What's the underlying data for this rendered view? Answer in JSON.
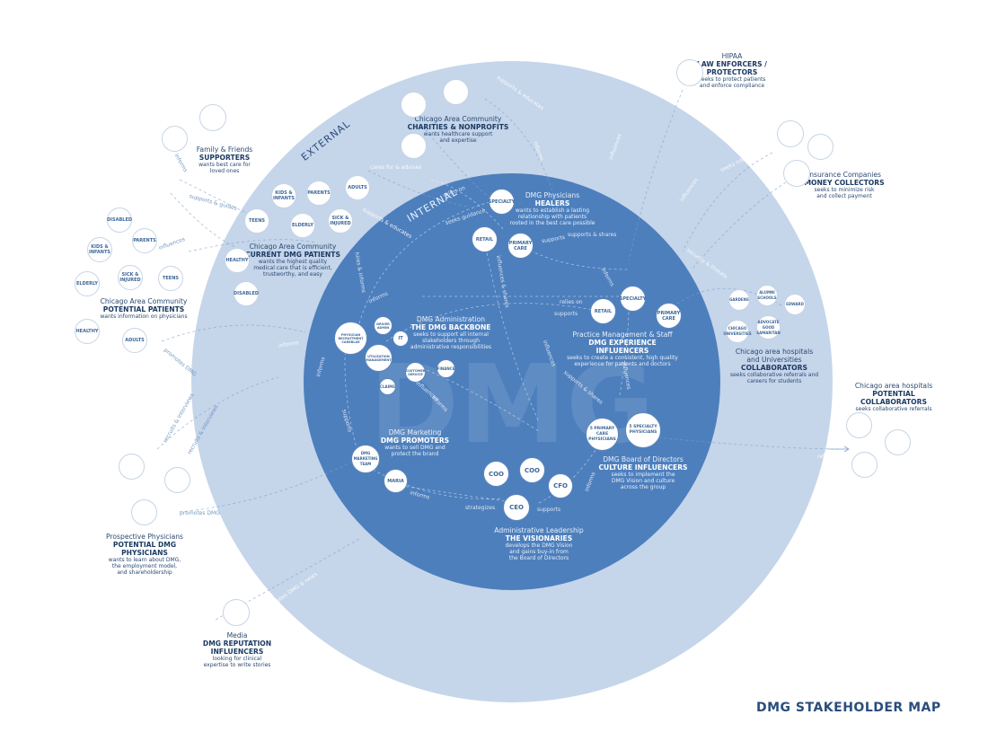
{
  "title": "DMG STAKEHOLDER MAP",
  "colors": {
    "outer_ring": "#c5d5ea",
    "inner_circle": "#4d7fbd",
    "text_dark": "#1f3f66",
    "node_border": "#c7d4e5"
  },
  "rings": {
    "external": "EXTERNAL",
    "internal": "INTERNAL",
    "watermark": "DMG"
  },
  "groups": {
    "hipaa": {
      "cat": "HIPAA",
      "role1": "LAW ENFORCERS /",
      "role2": "PROTECTORS",
      "desc1": "seeks to protect patients",
      "desc2": "and enforce compliance"
    },
    "charities": {
      "cat": "Chicago Area Community",
      "role": "CHARITIES & NONPROFITS",
      "desc1": "wants healthcare support",
      "desc2": "and expertise"
    },
    "family": {
      "cat": "Family & Friends",
      "role": "SUPPORTERS",
      "desc1": "wants best care for",
      "desc2": "loved ones"
    },
    "insurance": {
      "cat": "Insurance Companies",
      "role": "MONEY COLLECTORS",
      "desc1": "seeks to minimize risk",
      "desc2": "and collect payment"
    },
    "current": {
      "cat": "Chicago Area Community",
      "role": "CURRENT DMG PATIENTS",
      "desc1": "wants the highest quality",
      "desc2": "medical care that is efficient,",
      "desc3": "trustworthy, and easy"
    },
    "potential": {
      "cat": "Chicago Area Community",
      "role": "POTENTIAL PATIENTS",
      "desc1": "wants information on physicians"
    },
    "healers": {
      "cat": "DMG Physicians",
      "role": "HEALERS",
      "desc1": "wants to establish a lasting",
      "desc2": "relationship with patients",
      "desc3": "rooted in the best care possible"
    },
    "backbone": {
      "cat": "DMG Administration",
      "role": "THE DMG BACKBONE",
      "desc1": "seeks to support all internal",
      "desc2": "stakeholders through",
      "desc3": "administrative responsibilities"
    },
    "experience": {
      "cat": "Practice Management & Staff",
      "role": "DMG EXPERIENCE INFLUENCERS",
      "desc1": "seeks to create a consistent, high quality",
      "desc2": "experience for patients and doctors"
    },
    "collaborators": {
      "cat1": "Chicago area hospitals",
      "cat2": "and Universities",
      "role": "COLLABORATORS",
      "desc1": "seeks collaborative referrals and",
      "desc2": "careers for students"
    },
    "potential_collab": {
      "cat": "Chicago area hospitals",
      "role": "POTENTIAL COLLABORATORS",
      "desc1": "seeks collaborative referrals"
    },
    "promoters": {
      "cat": "DMG Marketing",
      "role": "DMG PROMOTERS",
      "desc1": "wants to sell DMG and",
      "desc2": "protect the brand"
    },
    "culture": {
      "cat": "DMG Board of Directors",
      "role": "CULTURE INFLUENCERS",
      "desc1": "seeks to implement the",
      "desc2": "DMG Vision and culture",
      "desc3": "across the group"
    },
    "visionaries": {
      "cat": "Administrative Leadership",
      "role": "THE VISIONARIES",
      "desc1": "develops the DMG Vision",
      "desc2": "and gains buy-in from",
      "desc3": "the Board of Directors"
    },
    "prospective": {
      "cat": "Prospective Physicians",
      "role": "POTENTIAL DMG PHYSICIANS",
      "desc1": "wants to learn about DMG,",
      "desc2": "the employment model,",
      "desc3": "and shareholdership"
    },
    "media": {
      "cat": "Media",
      "role1": "DMG REPUTATION",
      "role2": "INFLUENCERS",
      "desc1": "looking for clinical",
      "desc2": "expertise to write stories"
    }
  },
  "nodes": {
    "kids": "KIDS & INFANTS",
    "parents": "PARENTS",
    "adults": "ADULTS",
    "teens": "TEENS",
    "elderly": "ELDERLY",
    "sick": "SICK & INJURED",
    "healthy": "HEALTHY",
    "disabled": "DISABLED",
    "specialty": "SPECIALTY",
    "retail": "RETAIL",
    "primary": "PRIMARY CARE",
    "driver": "DRIVER ADMIN",
    "it": "IT",
    "physician_rec": "PHYSICIAN RECRUITMENT CAREBLUE",
    "util": "UTILIZATION MANAGEMENT",
    "customer": "CUSTOMER SERVICE",
    "finance": "FINANCE",
    "claims": "CLAIMS",
    "mkt_team": "DMG MARKETING TEAM",
    "maria": "MARIA",
    "coo": "COO",
    "cfo": "CFO",
    "ceo": "CEO",
    "five_primary": "5 PRIMARY CARE PHYSICIANS",
    "five_specialty": "5 SPECIALTY PHYSICIANS",
    "gardens": "GARDENS",
    "alumni": "ALUMNI SCHOOLS",
    "edward": "EDWARD",
    "chicago_uni": "CHICAGO UNIVERSITIES",
    "advocate": "ADVOCATE GOOD SAMARITAN"
  },
  "relations": {
    "supports_educates": "supports & educates",
    "informs": "informs",
    "cares_for": "cares for & advises",
    "supports_guides": "supports & guides",
    "influences": "influences",
    "seeks_guidance": "seeks guidance",
    "relies_on": "relies on",
    "supports": "supports",
    "supports_shares": "supports & shares",
    "influences_shares": "influences & shares",
    "hires_informs": "hires & informs",
    "promotes": "promotes DMG",
    "recruits": "recruits & interviews",
    "strategizes": "strategizes",
    "seeks_information": "seeks information",
    "security": "security & threats",
    "refers": "refers",
    "promotes_media": "promotes DMG & news"
  }
}
